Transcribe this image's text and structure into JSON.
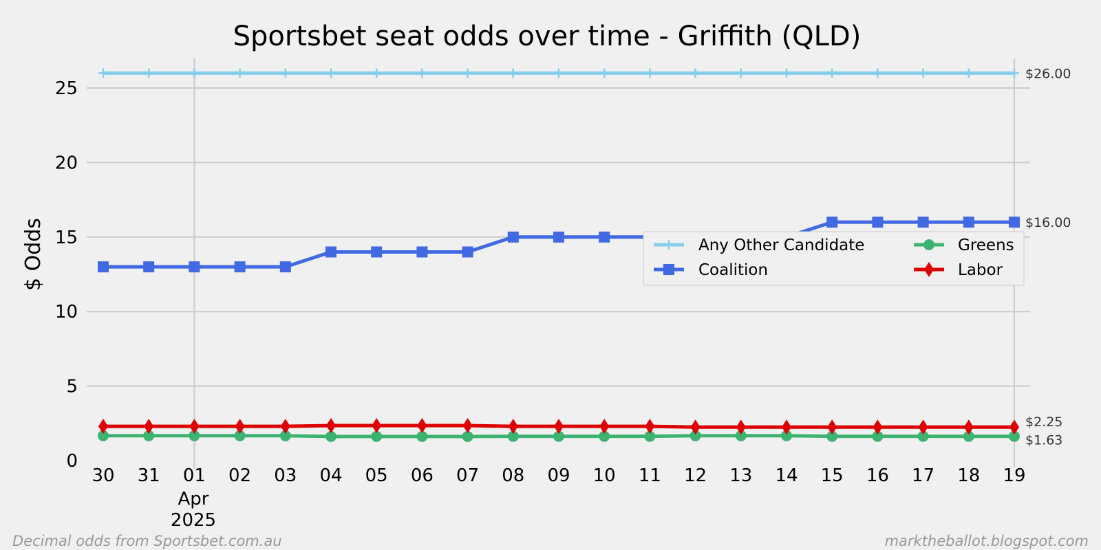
{
  "chart_data": {
    "type": "line",
    "title": "Sportsbet seat odds over time - Griffith (QLD)",
    "ylabel": "$ Odds",
    "xlabel": "",
    "ylim": [
      0,
      27
    ],
    "yticks": [
      0,
      5,
      10,
      15,
      20,
      25
    ],
    "x": [
      "2025-03-30",
      "2025-03-31",
      "2025-04-01",
      "2025-04-02",
      "2025-04-03",
      "2025-04-04",
      "2025-04-05",
      "2025-04-06",
      "2025-04-07",
      "2025-04-08",
      "2025-04-09",
      "2025-04-10",
      "2025-04-11",
      "2025-04-12",
      "2025-04-13",
      "2025-04-14",
      "2025-04-15",
      "2025-04-16",
      "2025-04-17",
      "2025-04-18",
      "2025-04-19"
    ],
    "xtick_labels": [
      "30",
      "31",
      "01",
      "02",
      "03",
      "04",
      "05",
      "06",
      "07",
      "08",
      "09",
      "10",
      "11",
      "12",
      "13",
      "14",
      "15",
      "16",
      "17",
      "18",
      "19"
    ],
    "month_label": "Apr",
    "year_label": "2025",
    "grid": true,
    "legend_placement": "center-right",
    "series": [
      {
        "name": "Any Other Candidate",
        "color": "#87ceeb",
        "marker": "plus",
        "values": [
          26,
          26,
          26,
          26,
          26,
          26,
          26,
          26,
          26,
          26,
          26,
          26,
          26,
          26,
          26,
          26,
          26,
          26,
          26,
          26,
          26
        ],
        "end_label": "$26.00"
      },
      {
        "name": "Coalition",
        "color": "#4169e1",
        "marker": "square",
        "values": [
          13,
          13,
          13,
          13,
          13,
          14,
          14,
          14,
          14,
          15,
          15,
          15,
          15,
          15,
          15,
          15,
          16,
          16,
          16,
          16,
          16
        ],
        "end_label": "$16.00"
      },
      {
        "name": "Greens",
        "color": "#3cb371",
        "marker": "circle",
        "values": [
          1.67,
          1.67,
          1.67,
          1.67,
          1.67,
          1.62,
          1.62,
          1.62,
          1.62,
          1.63,
          1.63,
          1.63,
          1.63,
          1.67,
          1.67,
          1.67,
          1.63,
          1.63,
          1.63,
          1.63,
          1.63
        ],
        "end_label": "$1.63"
      },
      {
        "name": "Labor",
        "color": "#dd0000",
        "marker": "diamond",
        "values": [
          2.3,
          2.3,
          2.3,
          2.3,
          2.3,
          2.35,
          2.35,
          2.35,
          2.35,
          2.3,
          2.3,
          2.3,
          2.3,
          2.25,
          2.25,
          2.25,
          2.25,
          2.25,
          2.25,
          2.25,
          2.25
        ],
        "end_label": "$2.25"
      }
    ]
  },
  "footer": {
    "left": "Decimal odds from Sportsbet.com.au",
    "right": "marktheballot.blogspot.com"
  }
}
